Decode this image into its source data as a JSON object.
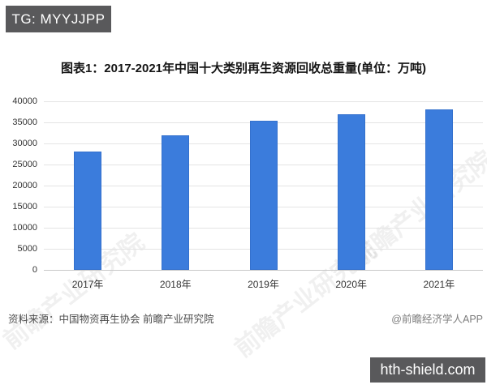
{
  "header": {
    "badge": "TG: MYYJJPP"
  },
  "chart_data": {
    "type": "bar",
    "title": "图表1：2017-2021年中国十大类别再生资源回收总重量(单位：万吨)",
    "categories": [
      "2017年",
      "2018年",
      "2019年",
      "2020年",
      "2021年"
    ],
    "values": [
      28000,
      32000,
      35400,
      37000,
      38000
    ],
    "unit": "万吨",
    "xlabel": "",
    "ylabel": "",
    "ylim": [
      0,
      40000
    ],
    "ytick_step": 5000,
    "grid": "horizontal",
    "legend": "none",
    "bar_color": "#3b7cdc"
  },
  "watermark": {
    "text": "前瞻产业研究院"
  },
  "footer": {
    "source": "资料来源：中国物资再生协会 前瞻产业研究院",
    "credit": "@前瞻经济学人APP",
    "site_badge": "hth-shield.com"
  },
  "colors": {
    "badge_bg": "#59595b",
    "bar": "#3b7cdc",
    "gridline": "#e4e4e4",
    "title_text": "#141414",
    "axis_text": "#333333",
    "source_text": "#4d4d4d",
    "credit_text": "#7d7d7d"
  }
}
